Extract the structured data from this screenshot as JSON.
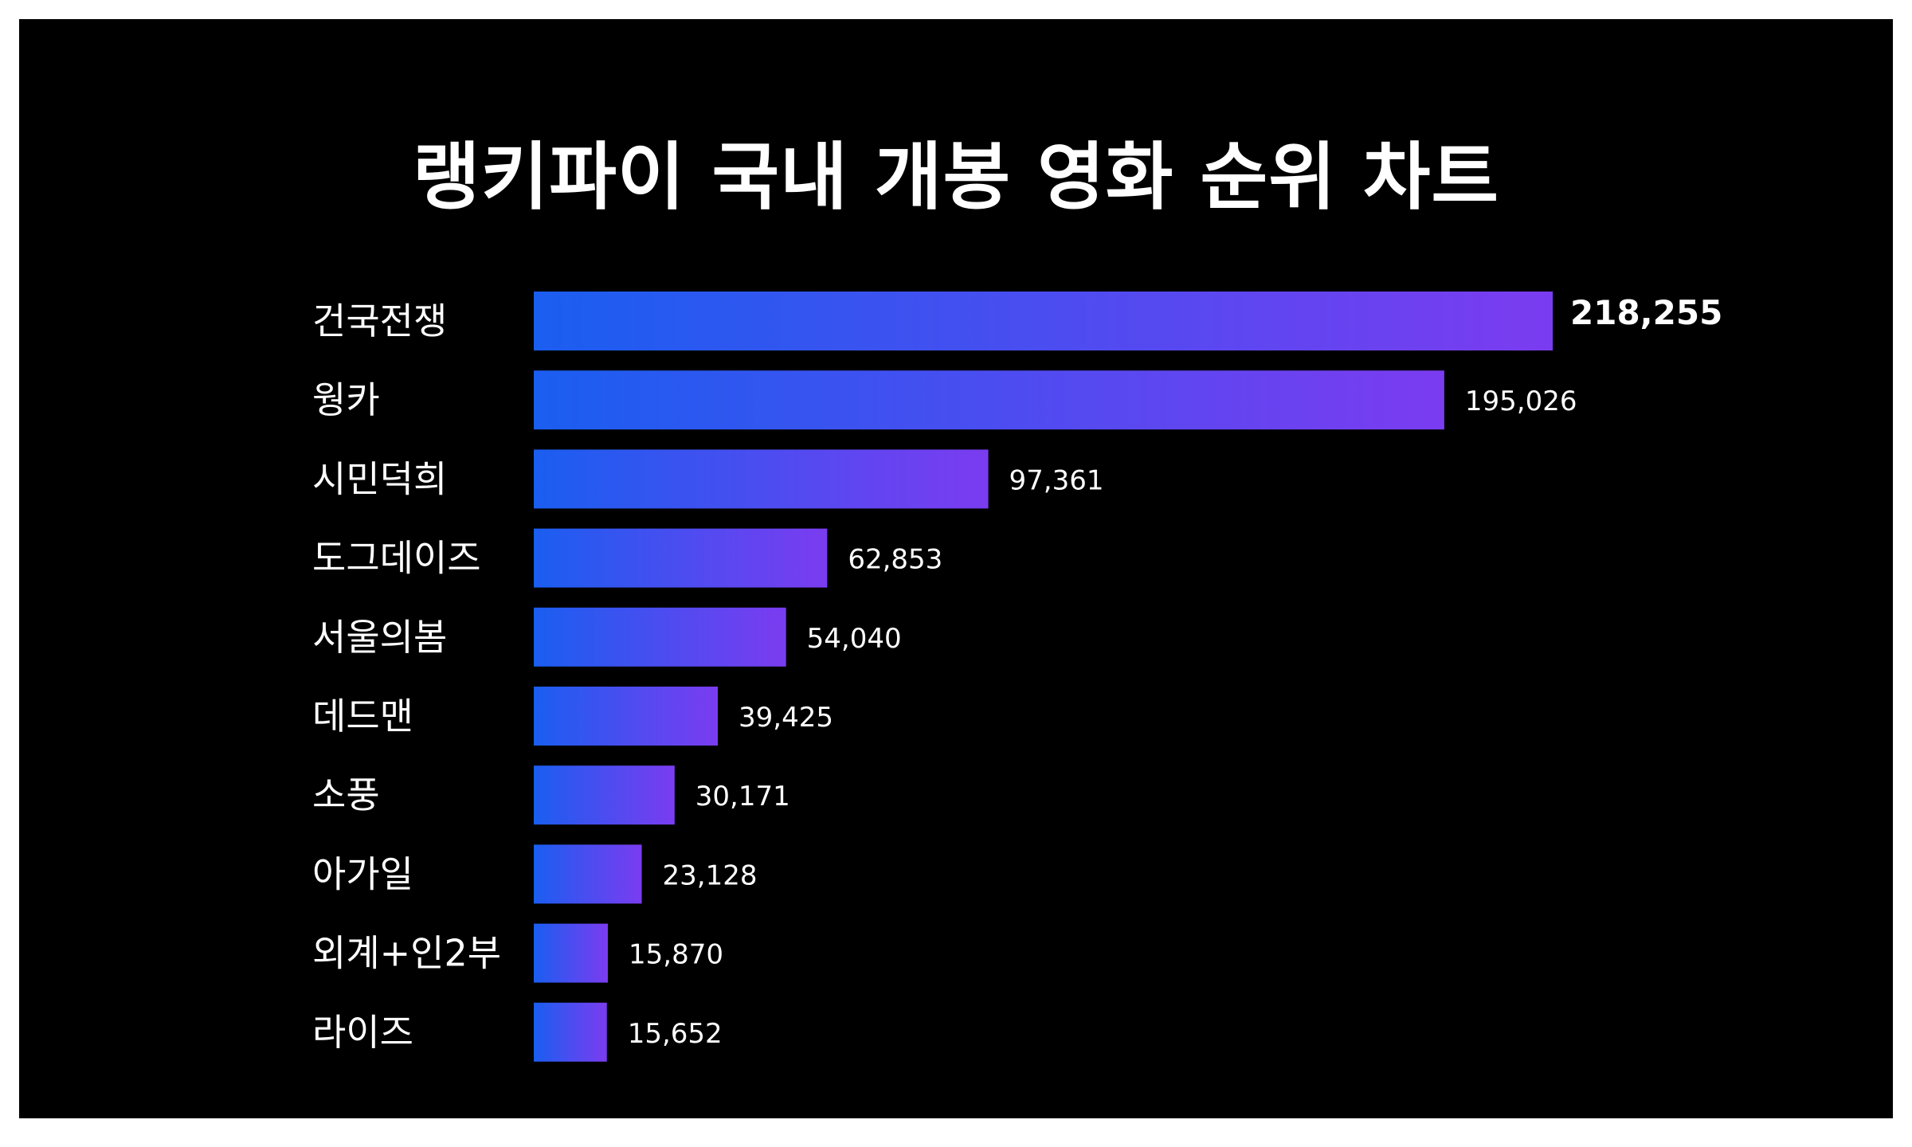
{
  "title": "랭키파이 국내 개봉 영화 순위 차트",
  "colors": {
    "background": "#000000",
    "bar_start": "#1a5ef0",
    "bar_end": "#7b3cf0",
    "text": "#ffffff"
  },
  "chart_data": {
    "type": "bar",
    "orientation": "horizontal",
    "title": "랭키파이 국내 개봉 영화 순위 차트",
    "categories": [
      "건국전쟁",
      "웡카",
      "시민덕희",
      "도그데이즈",
      "서울의봄",
      "데드맨",
      "소풍",
      "아가일",
      "외계+인2부",
      "라이즈"
    ],
    "values": [
      218255,
      195026,
      97361,
      62853,
      54040,
      39425,
      30171,
      23128,
      15870,
      15652
    ],
    "value_labels": [
      "218,255",
      "195,026",
      "97,361",
      "62,853",
      "54,040",
      "39,425",
      "30,171",
      "23,128",
      "15,870",
      "15,652"
    ],
    "xlim": [
      0,
      218255
    ],
    "grid": false,
    "legend": "none"
  }
}
